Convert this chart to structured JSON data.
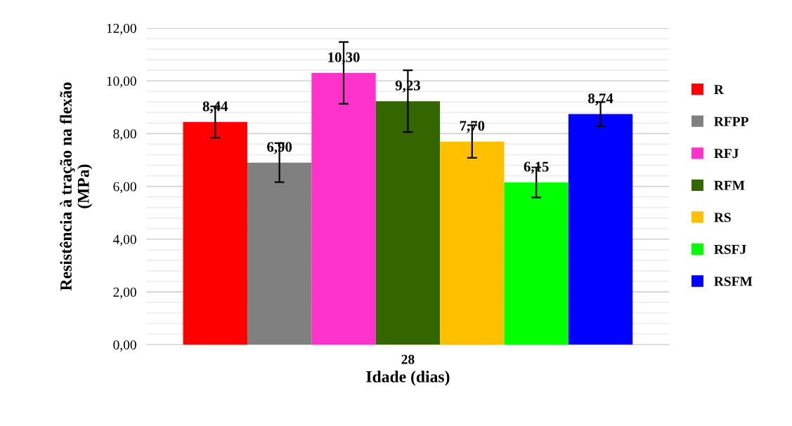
{
  "chart_data": {
    "type": "bar",
    "xlabel": "Idade (dias)",
    "ylabel": "Resistência à tração na flexão\n(MPa)",
    "categories": [
      "28"
    ],
    "series": [
      {
        "name": "R",
        "color": "#ff0000",
        "values": [
          8.44
        ],
        "value_labels": [
          "8,44"
        ],
        "errors": [
          0.59
        ]
      },
      {
        "name": "RFPP",
        "color": "#808080",
        "values": [
          6.9
        ],
        "value_labels": [
          "6,90"
        ],
        "errors": [
          0.74
        ]
      },
      {
        "name": "RFJ",
        "color": "#ff33cc",
        "values": [
          10.3
        ],
        "value_labels": [
          "10,30"
        ],
        "errors": [
          1.17
        ]
      },
      {
        "name": "RFM",
        "color": "#336600",
        "values": [
          9.23
        ],
        "value_labels": [
          "9,23"
        ],
        "errors": [
          1.17
        ]
      },
      {
        "name": "RS",
        "color": "#ffc000",
        "values": [
          7.7
        ],
        "value_labels": [
          "7,70"
        ],
        "errors": [
          0.62
        ]
      },
      {
        "name": "RSFJ",
        "color": "#00ff00",
        "values": [
          6.15
        ],
        "value_labels": [
          "6,15"
        ],
        "errors": [
          0.57
        ]
      },
      {
        "name": "RSFM",
        "color": "#0000ff",
        "values": [
          8.74
        ],
        "value_labels": [
          "8,74"
        ],
        "errors": [
          0.46
        ]
      }
    ],
    "ylim": [
      0,
      12
    ],
    "yticks": [
      {
        "value": 0,
        "label": "0,00"
      },
      {
        "value": 2,
        "label": "2,00"
      },
      {
        "value": 4,
        "label": "4,00"
      },
      {
        "value": 6,
        "label": "6,00"
      },
      {
        "value": 8,
        "label": "8,00"
      },
      {
        "value": 10,
        "label": "10,00"
      },
      {
        "value": 12,
        "label": "12,00"
      }
    ],
    "grid": "y",
    "legend": "right"
  }
}
